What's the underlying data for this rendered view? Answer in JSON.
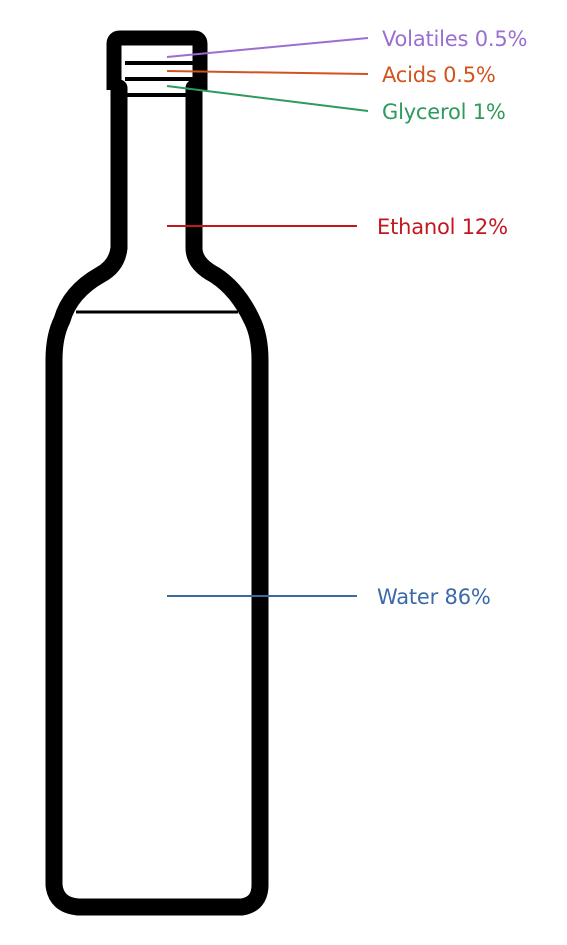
{
  "components": [
    {
      "id": "volatiles",
      "name": "Volatiles",
      "percent": 0.5,
      "label": "Volatiles 0.5%",
      "color": "#9b6fd0"
    },
    {
      "id": "acids",
      "name": "Acids",
      "percent": 0.5,
      "label": "Acids 0.5%",
      "color": "#d2541c"
    },
    {
      "id": "glycerol",
      "name": "Glycerol",
      "percent": 1,
      "label": "Glycerol 1%",
      "color": "#2e9a5e"
    },
    {
      "id": "ethanol",
      "name": "Ethanol",
      "percent": 12,
      "label": "Ethanol 12%",
      "color": "#c3171f"
    },
    {
      "id": "water",
      "name": "Water",
      "percent": 86,
      "label": "Water 86%",
      "color": "#3a6aa8"
    }
  ],
  "bottle": {
    "outline_color": "#000000"
  }
}
